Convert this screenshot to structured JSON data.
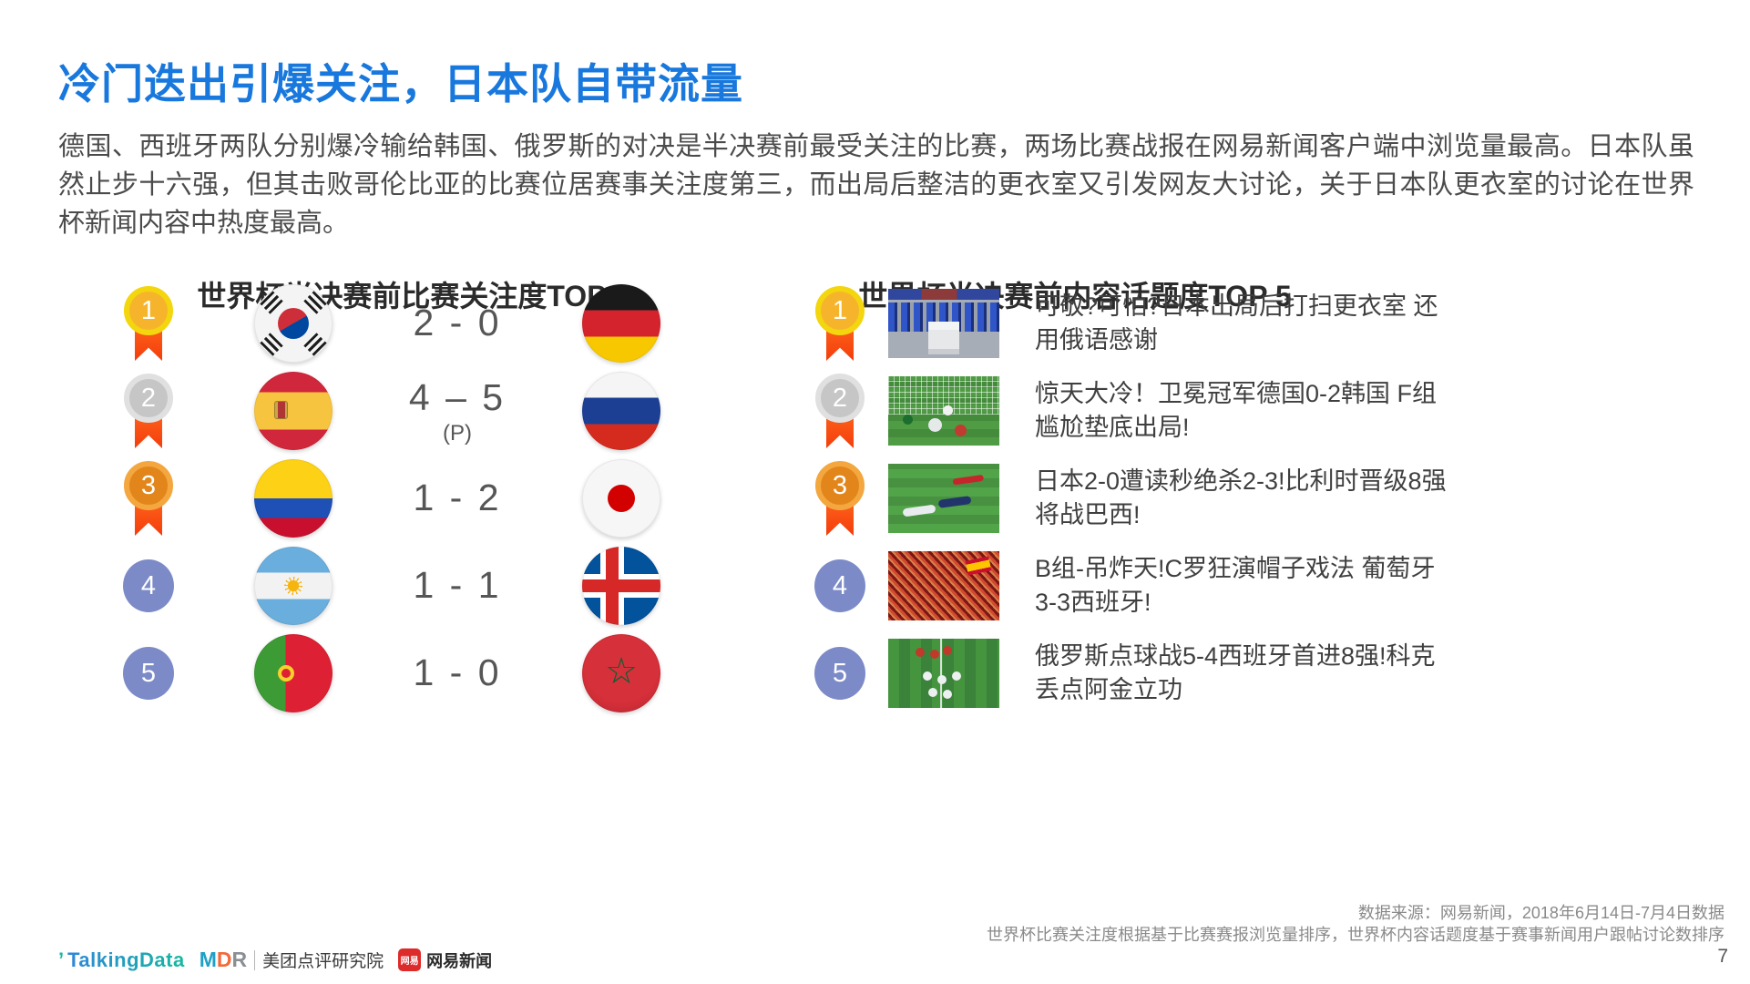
{
  "slide": {
    "title": "冷门迭出引爆关注，日本队自带流量",
    "body": "德国、西班牙两队分别爆冷输给韩国、俄罗斯的对决是半决赛前最受关注的比赛，两场比赛战报在网易新闻客户端中浏览量最高。日本队虽然止步十六强，但其击败哥伦比亚的比赛位居赛事关注度第三，而出局后整洁的更衣室又引发网友大讨论，关于日本队更衣室的讨论在世界杯新闻内容中热度最高。",
    "page_number": "7"
  },
  "left_panel": {
    "title": "世界杯半决赛前比赛关注度TOP 5",
    "rows": [
      {
        "rank": "1",
        "home_team": "South Korea",
        "score": "2 - 0",
        "note": "",
        "away_team": "Germany"
      },
      {
        "rank": "2",
        "home_team": "Spain",
        "score": "4 – 5",
        "note": "(P)",
        "away_team": "Russia"
      },
      {
        "rank": "3",
        "home_team": "Colombia",
        "score": "1 - 2",
        "note": "",
        "away_team": "Japan"
      },
      {
        "rank": "4",
        "home_team": "Argentina",
        "score": "1 - 1",
        "note": "",
        "away_team": "Iceland"
      },
      {
        "rank": "5",
        "home_team": "Portugal",
        "score": "1 - 0",
        "note": "",
        "away_team": "Morocco"
      }
    ]
  },
  "right_panel": {
    "title": "世界杯半决赛前内容话题度TOP 5",
    "items": [
      {
        "rank": "1",
        "headline": "可敬?可怕?日本出局后打扫更衣室 还用俄语感谢"
      },
      {
        "rank": "2",
        "headline": "惊天大冷！卫冕冠军德国0-2韩国 F组尴尬垫底出局!"
      },
      {
        "rank": "3",
        "headline": "日本2-0遭读秒绝杀2-3!比利时晋级8强将战巴西!"
      },
      {
        "rank": "4",
        "headline": "B组-吊炸天!C罗狂演帽子戏法 葡萄牙3-3西班牙!"
      },
      {
        "rank": "5",
        "headline": "俄罗斯点球战5-4西班牙首进8强!科克丢点阿金立功"
      }
    ]
  },
  "footer": {
    "source_line1": "数据来源：网易新闻，2018年6月14日-7月4日数据",
    "source_line2": "世界杯比赛关注度根据基于比赛赛报浏览量排序，世界杯内容话题度基于赛事新闻用户跟帖讨论数排序"
  },
  "logos": {
    "talkingdata_tick": "’",
    "talkingdata": "TalkingData",
    "mdr_m": "M",
    "mdr_d": "D",
    "mdr_r": "R",
    "mdr_org": "美团点评研究院",
    "netease_badge": "网易",
    "netease_label": "网易新闻"
  },
  "icons": {
    "morocco_star": "☆"
  },
  "colors": {
    "accent_blue": "#1878dd",
    "medal_gold_ring": "#f3d60e",
    "medal_gold_fill": "#f6b42c",
    "medal_silver_ring": "#e0e0e0",
    "medal_silver_fill": "#c6c6c6",
    "medal_bronze_ring": "#f3a73e",
    "medal_bronze_fill": "#e2861b",
    "ribbon_orange": "#ff5a1a",
    "rank_blue": "#7c8bc8",
    "body_text": "#4b4b4b",
    "footer_text": "#8a8a8a"
  }
}
